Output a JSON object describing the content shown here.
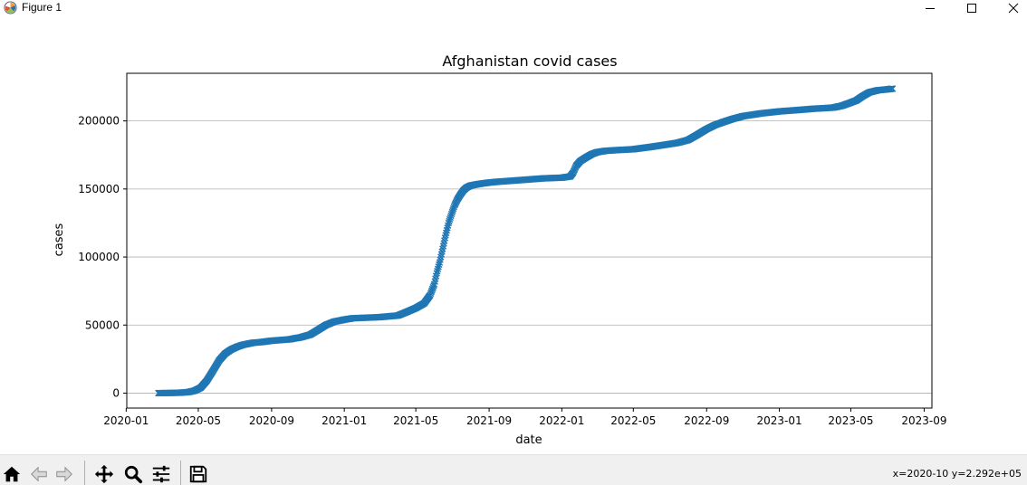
{
  "window": {
    "title": "Figure 1",
    "icons": {
      "app": "matplotlib-logo-icon",
      "minimize": "minimize-icon",
      "maximize": "maximize-icon",
      "close": "close-icon"
    }
  },
  "toolbar": {
    "buttons": [
      {
        "name": "home-button",
        "icon": "home-icon"
      },
      {
        "name": "back-button",
        "icon": "arrow-left-icon"
      },
      {
        "name": "forward-button",
        "icon": "arrow-right-icon"
      },
      {
        "name": "pan-button",
        "icon": "move-icon"
      },
      {
        "name": "zoom-button",
        "icon": "magnifier-icon"
      },
      {
        "name": "subplots-button",
        "icon": "sliders-icon"
      },
      {
        "name": "save-button",
        "icon": "floppy-disk-icon"
      }
    ],
    "coords": "x=2020-10 y=2.292e+05"
  },
  "chart_data": {
    "type": "scatter",
    "title": "Afghanistan covid cases",
    "xlabel": "date",
    "ylabel": "cases",
    "marker": "x",
    "color": "#1f77b4",
    "grid": "y-axis horizontal lines",
    "xlim": [
      "2020-01-02",
      "2023-09-14"
    ],
    "ylim": [
      -11000,
      235000
    ],
    "x_ticks": [
      "2020-01",
      "2020-05",
      "2020-09",
      "2021-01",
      "2021-05",
      "2021-09",
      "2022-01",
      "2022-05",
      "2022-09",
      "2023-01",
      "2023-05",
      "2023-09"
    ],
    "y_ticks": [
      0,
      50000,
      100000,
      150000,
      200000
    ],
    "series": [
      {
        "x": [
          "2020-02-24",
          "2020-03-15",
          "2020-04-01",
          "2020-04-15",
          "2020-04-25",
          "2020-05-05",
          "2020-05-15",
          "2020-05-25",
          "2020-06-05",
          "2020-06-15",
          "2020-06-25",
          "2020-07-05",
          "2020-07-15",
          "2020-08-01",
          "2020-08-15",
          "2020-09-01",
          "2020-10-01",
          "2020-10-20",
          "2020-11-05",
          "2020-11-20",
          "2020-12-01",
          "2020-12-15",
          "2021-01-01",
          "2021-01-15",
          "2021-02-01",
          "2021-03-01",
          "2021-04-01",
          "2021-04-15",
          "2021-05-01",
          "2021-05-15",
          "2021-05-25",
          "2021-06-01",
          "2021-06-05",
          "2021-06-10",
          "2021-06-15",
          "2021-06-20",
          "2021-06-25",
          "2021-07-01",
          "2021-07-05",
          "2021-07-10",
          "2021-07-15",
          "2021-07-20",
          "2021-07-25",
          "2021-08-01",
          "2021-08-10",
          "2021-08-20",
          "2021-09-01",
          "2021-09-15",
          "2021-10-01",
          "2021-11-01",
          "2021-12-01",
          "2022-01-01",
          "2022-01-15",
          "2022-01-20",
          "2022-01-25",
          "2022-02-01",
          "2022-02-10",
          "2022-02-20",
          "2022-03-01",
          "2022-03-15",
          "2022-04-01",
          "2022-05-01",
          "2022-06-01",
          "2022-07-01",
          "2022-07-15",
          "2022-08-01",
          "2022-08-15",
          "2022-09-01",
          "2022-09-15",
          "2022-10-01",
          "2022-10-15",
          "2022-11-01",
          "2022-12-01",
          "2023-01-01",
          "2023-02-01",
          "2023-03-01",
          "2023-03-15",
          "2023-04-01",
          "2023-04-15",
          "2023-05-01",
          "2023-05-10",
          "2023-05-20",
          "2023-06-01",
          "2023-06-15",
          "2023-07-01",
          "2023-07-10"
        ],
        "y": [
          0,
          100,
          300,
          800,
          1800,
          4000,
          9000,
          16000,
          24000,
          29000,
          32000,
          34000,
          35500,
          37000,
          37500,
          38500,
          39500,
          41000,
          43000,
          47000,
          50000,
          52500,
          54000,
          55000,
          55300,
          55800,
          57000,
          59500,
          62500,
          66000,
          72000,
          80000,
          88000,
          96000,
          106000,
          116000,
          125000,
          133000,
          138000,
          142500,
          146000,
          149000,
          151000,
          152500,
          153300,
          154000,
          154700,
          155300,
          155800,
          156800,
          157800,
          158300,
          159200,
          162000,
          167000,
          170500,
          173000,
          175500,
          177000,
          178000,
          178500,
          179200,
          181000,
          183000,
          184000,
          186000,
          189500,
          194000,
          197000,
          199500,
          201500,
          203500,
          205500,
          207000,
          208000,
          209000,
          209300,
          209800,
          211000,
          213500,
          215000,
          218000,
          221000,
          222500,
          223200,
          223700
        ]
      }
    ]
  }
}
